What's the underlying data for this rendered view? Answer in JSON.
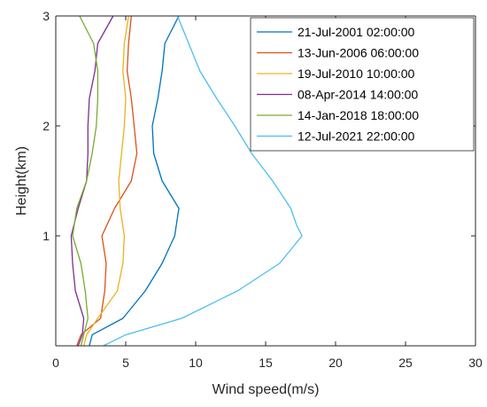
{
  "chart_data": {
    "type": "line",
    "xlabel": "Wind speed(m/s)",
    "ylabel": "Height(km)",
    "xlim": [
      0,
      30
    ],
    "ylim": [
      0,
      3
    ],
    "xticks": [
      0,
      5,
      10,
      15,
      20,
      25,
      30
    ],
    "yticks": [
      1,
      2,
      3
    ],
    "grid": false,
    "legend_position": "top-right",
    "series": [
      {
        "name": "21-Jul-2001 02:00:00",
        "color": "#0072BD",
        "points": [
          [
            2.4,
            0.0
          ],
          [
            2.6,
            0.1
          ],
          [
            4.8,
            0.25
          ],
          [
            6.4,
            0.5
          ],
          [
            7.6,
            0.75
          ],
          [
            8.5,
            1.0
          ],
          [
            8.8,
            1.25
          ],
          [
            7.6,
            1.5
          ],
          [
            7.0,
            1.75
          ],
          [
            6.9,
            2.0
          ],
          [
            7.3,
            2.25
          ],
          [
            7.6,
            2.5
          ],
          [
            7.8,
            2.75
          ],
          [
            8.8,
            3.0
          ]
        ]
      },
      {
        "name": "13-Jun-2006 06:00:00",
        "color": "#D95319",
        "points": [
          [
            1.5,
            0.0
          ],
          [
            1.8,
            0.1
          ],
          [
            3.2,
            0.25
          ],
          [
            3.5,
            0.5
          ],
          [
            3.6,
            0.75
          ],
          [
            3.3,
            1.0
          ],
          [
            4.2,
            1.25
          ],
          [
            5.4,
            1.5
          ],
          [
            5.8,
            1.75
          ],
          [
            5.6,
            2.0
          ],
          [
            5.4,
            2.25
          ],
          [
            5.1,
            2.5
          ],
          [
            5.2,
            2.75
          ],
          [
            5.4,
            3.0
          ]
        ]
      },
      {
        "name": "19-Jul-2010 10:00:00",
        "color": "#EDB120",
        "points": [
          [
            2.0,
            0.0
          ],
          [
            2.2,
            0.1
          ],
          [
            3.0,
            0.25
          ],
          [
            4.4,
            0.5
          ],
          [
            4.8,
            0.75
          ],
          [
            4.9,
            1.0
          ],
          [
            4.6,
            1.25
          ],
          [
            4.5,
            1.5
          ],
          [
            4.7,
            1.75
          ],
          [
            4.9,
            2.0
          ],
          [
            5.0,
            2.25
          ],
          [
            4.8,
            2.5
          ],
          [
            4.9,
            2.75
          ],
          [
            5.2,
            3.0
          ]
        ]
      },
      {
        "name": "08-Apr-2014 14:00:00",
        "color": "#7E2F8E",
        "points": [
          [
            1.6,
            0.0
          ],
          [
            1.9,
            0.1
          ],
          [
            2.0,
            0.25
          ],
          [
            1.4,
            0.5
          ],
          [
            1.2,
            0.75
          ],
          [
            1.1,
            1.0
          ],
          [
            1.6,
            1.25
          ],
          [
            2.2,
            1.5
          ],
          [
            2.3,
            1.75
          ],
          [
            2.3,
            2.0
          ],
          [
            2.4,
            2.25
          ],
          [
            2.8,
            2.5
          ],
          [
            3.0,
            2.75
          ],
          [
            4.1,
            3.0
          ]
        ]
      },
      {
        "name": "14-Jan-2018 18:00:00",
        "color": "#77AC30",
        "points": [
          [
            1.8,
            0.0
          ],
          [
            2.0,
            0.1
          ],
          [
            2.3,
            0.25
          ],
          [
            2.1,
            0.5
          ],
          [
            1.8,
            0.75
          ],
          [
            1.2,
            1.0
          ],
          [
            1.5,
            1.25
          ],
          [
            2.2,
            1.5
          ],
          [
            2.6,
            1.75
          ],
          [
            2.9,
            2.0
          ],
          [
            3.0,
            2.25
          ],
          [
            3.0,
            2.5
          ],
          [
            2.7,
            2.75
          ],
          [
            1.7,
            3.0
          ]
        ]
      },
      {
        "name": "12-Jul-2021 22:00:00",
        "color": "#4DBEEE",
        "points": [
          [
            3.4,
            0.0
          ],
          [
            5.0,
            0.1
          ],
          [
            9.0,
            0.25
          ],
          [
            13.0,
            0.5
          ],
          [
            16.0,
            0.75
          ],
          [
            17.6,
            1.0
          ],
          [
            17.2,
            1.1
          ],
          [
            16.8,
            1.25
          ],
          [
            15.5,
            1.5
          ],
          [
            14.0,
            1.75
          ],
          [
            12.8,
            2.0
          ],
          [
            11.5,
            2.25
          ],
          [
            10.3,
            2.5
          ],
          [
            9.5,
            2.75
          ],
          [
            8.7,
            3.0
          ]
        ]
      }
    ]
  }
}
